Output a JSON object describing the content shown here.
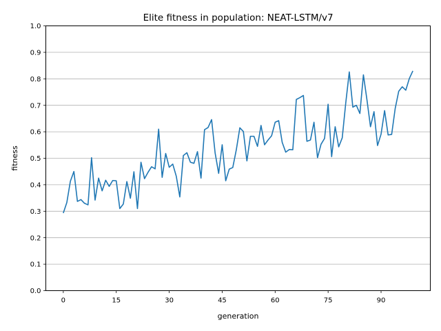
{
  "chart_data": {
    "type": "line",
    "title": "Elite fitness in population: NEAT-LSTM/v7",
    "xlabel": "generation",
    "ylabel": "fitness",
    "xlim": [
      -4.95,
      103.95
    ],
    "ylim": [
      0.0,
      1.0
    ],
    "x_ticks": [
      0,
      15,
      30,
      45,
      60,
      75,
      90
    ],
    "y_ticks": [
      0.0,
      0.1,
      0.2,
      0.3,
      0.4,
      0.5,
      0.6,
      0.7,
      0.8,
      0.9,
      1.0
    ],
    "y_tick_labels": [
      "0.0",
      "0.1",
      "0.2",
      "0.3",
      "0.4",
      "0.5",
      "0.6",
      "0.7",
      "0.8",
      "0.9",
      "1.0"
    ],
    "grid": "horizontal",
    "line_color": "#1f77b4",
    "series": [
      {
        "x": [
          0,
          1,
          2,
          3,
          4,
          5,
          6,
          7,
          8,
          9,
          10,
          11,
          12,
          13,
          14,
          15,
          16,
          17,
          18,
          19,
          20,
          21,
          22,
          23,
          24,
          25,
          26,
          27,
          28,
          29,
          30,
          31,
          32,
          33,
          34,
          35,
          36,
          37,
          38,
          39,
          40,
          41,
          42,
          43,
          44,
          45,
          46,
          47,
          48,
          49,
          50,
          51,
          52,
          53,
          54,
          55,
          56,
          57,
          58,
          59,
          60,
          61,
          62,
          63,
          64,
          65,
          66,
          67,
          68,
          69,
          70,
          71,
          72,
          73,
          74,
          75,
          76,
          77,
          78,
          79,
          80,
          81,
          82,
          83,
          84,
          85,
          86,
          87,
          88,
          89,
          90,
          91,
          92,
          93,
          94,
          95,
          96,
          97,
          98,
          99
        ],
        "y": [
          0.293,
          0.333,
          0.413,
          0.45,
          0.337,
          0.344,
          0.33,
          0.324,
          0.502,
          0.342,
          0.425,
          0.377,
          0.417,
          0.394,
          0.416,
          0.415,
          0.31,
          0.327,
          0.412,
          0.349,
          0.449,
          0.31,
          0.485,
          0.423,
          0.447,
          0.468,
          0.46,
          0.61,
          0.428,
          0.518,
          0.466,
          0.478,
          0.432,
          0.354,
          0.51,
          0.521,
          0.485,
          0.481,
          0.525,
          0.425,
          0.608,
          0.616,
          0.646,
          0.52,
          0.443,
          0.551,
          0.415,
          0.459,
          0.465,
          0.532,
          0.615,
          0.601,
          0.49,
          0.583,
          0.583,
          0.545,
          0.624,
          0.551,
          0.569,
          0.585,
          0.636,
          0.642,
          0.56,
          0.523,
          0.533,
          0.532,
          0.722,
          0.729,
          0.737,
          0.564,
          0.569,
          0.636,
          0.502,
          0.553,
          0.575,
          0.704,
          0.506,
          0.619,
          0.543,
          0.577,
          0.709,
          0.826,
          0.693,
          0.7,
          0.669,
          0.815,
          0.721,
          0.619,
          0.676,
          0.548,
          0.591,
          0.68,
          0.588,
          0.59,
          0.688,
          0.753,
          0.77,
          0.757,
          0.801,
          0.83
        ]
      }
    ]
  }
}
